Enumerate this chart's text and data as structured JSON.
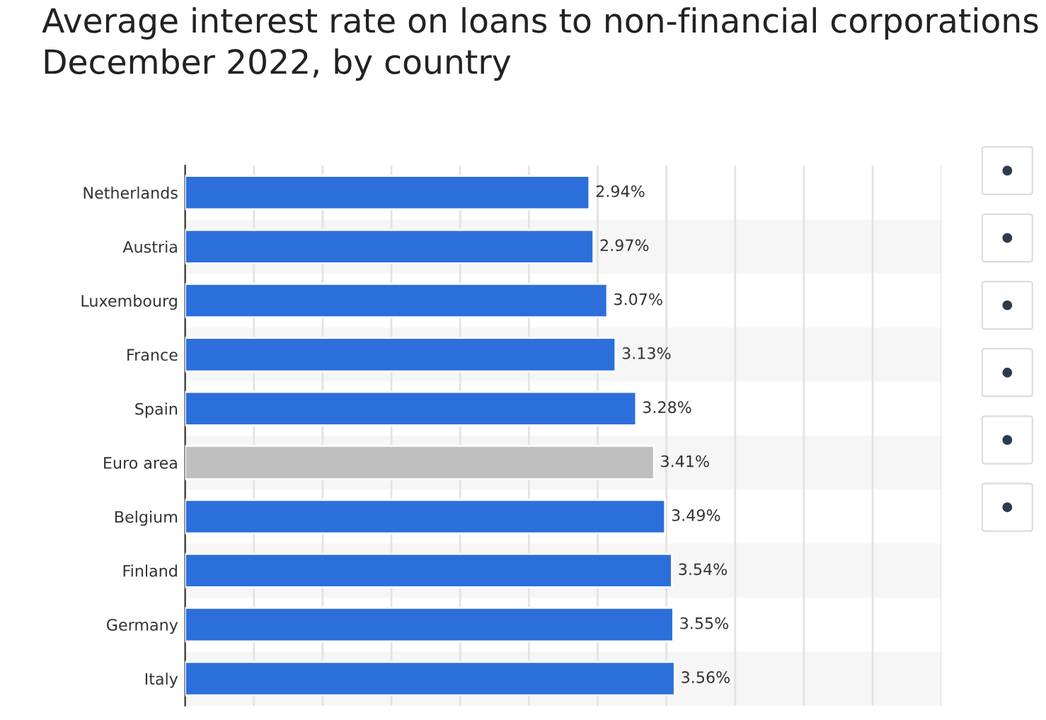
{
  "chart_data": {
    "type": "bar",
    "orientation": "horizontal",
    "title": "Average interest rate on loans to non-financial corporations\nDecember 2022, by country",
    "categories": [
      "Netherlands",
      "Austria",
      "Luxembourg",
      "France",
      "Spain",
      "Euro area",
      "Belgium",
      "Finland",
      "Germany",
      "Italy"
    ],
    "values": [
      2.94,
      2.97,
      3.07,
      3.13,
      3.28,
      3.41,
      3.49,
      3.54,
      3.55,
      3.56
    ],
    "colors": [
      "#2c6fdb",
      "#2c6fdb",
      "#2c6fdb",
      "#2c6fdb",
      "#2c6fdb",
      "#bfbfbf",
      "#2c6fdb",
      "#2c6fdb",
      "#2c6fdb",
      "#2c6fdb"
    ],
    "value_labels": [
      "2.94%",
      "2.97%",
      "3.07%",
      "3.13%",
      "3.28%",
      "3.41%",
      "3.49%",
      "3.54%",
      "3.55%",
      "3.56%"
    ],
    "xlim": [
      0,
      5.5
    ],
    "xticks": [
      {
        "value": 0,
        "label": null
      },
      {
        "value": 0.5,
        "label": null
      },
      {
        "value": 1,
        "label": null
      },
      {
        "value": 1.5,
        "label": null
      },
      {
        "value": 2,
        "label": null
      },
      {
        "value": 2.5,
        "label": null
      },
      {
        "value": 3,
        "label": null
      },
      {
        "value": 3.5,
        "label": null
      },
      {
        "value": 4,
        "label": null
      },
      {
        "value": 4.5,
        "label": null
      },
      {
        "value": 5,
        "label": null
      },
      {
        "value": 5.5,
        "label": null
      }
    ],
    "grid": "x",
    "tick_labels": "y"
  }
}
